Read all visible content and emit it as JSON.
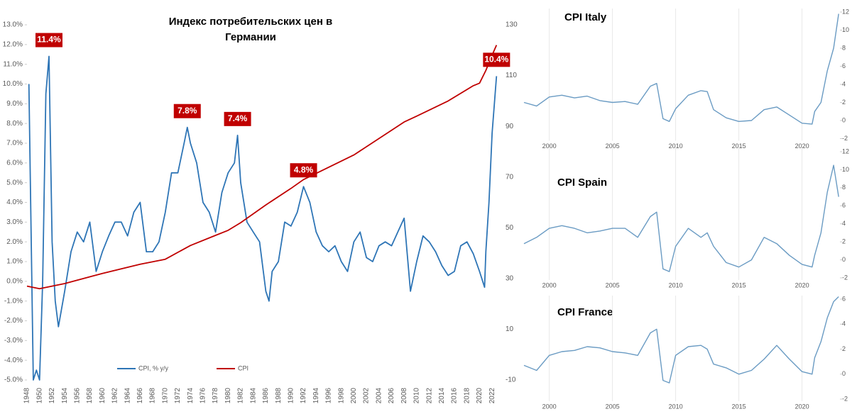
{
  "chart_data": [
    {
      "type": "line",
      "title": "Индекс потребительских цен в Германии",
      "y_axis_side": "left",
      "grid": false,
      "legend": "bottom",
      "annotation_color": "#c00000",
      "xlim": [
        1948,
        2023
      ],
      "xticks": [
        1948,
        1950,
        1952,
        1954,
        1956,
        1958,
        1960,
        1962,
        1964,
        1966,
        1968,
        1970,
        1972,
        1974,
        1976,
        1978,
        1980,
        1982,
        1984,
        1986,
        1988,
        1990,
        1992,
        1994,
        1996,
        1998,
        2000,
        2002,
        2004,
        2006,
        2008,
        2010,
        2012,
        2014,
        2016,
        2018,
        2020,
        2022
      ],
      "ylim": [
        -5,
        13
      ],
      "yticks": [
        {
          "value": -5,
          "label": "-5.0%"
        },
        {
          "value": -4,
          "label": "-4.0%"
        },
        {
          "value": -3,
          "label": "-3.0%"
        },
        {
          "value": -2,
          "label": "-2.0%"
        },
        {
          "value": -1,
          "label": "-1.0%"
        },
        {
          "value": 0,
          "label": "0.0%"
        },
        {
          "value": 1,
          "label": "1.0%"
        },
        {
          "value": 2,
          "label": "2.0%"
        },
        {
          "value": 3,
          "label": "3.0%"
        },
        {
          "value": 4,
          "label": "4.0%"
        },
        {
          "value": 5,
          "label": "5.0%"
        },
        {
          "value": 6,
          "label": "6.0%"
        },
        {
          "value": 7,
          "label": "7.0%"
        },
        {
          "value": 8,
          "label": "8.0%"
        },
        {
          "value": 9,
          "label": "9.0%"
        },
        {
          "value": 10,
          "label": "10.0%"
        },
        {
          "value": 11,
          "label": "11.0%"
        },
        {
          "value": 12,
          "label": "12.0%"
        },
        {
          "value": 13,
          "label": "13.0%"
        }
      ],
      "y2lim": [
        -10,
        130
      ],
      "y2ticks": [
        -10,
        10,
        30,
        50,
        70,
        90,
        110,
        130
      ],
      "series": [
        {
          "name": "CPI, % y/y",
          "color": "#2e75b6",
          "x": [
            1948.3,
            1949,
            1949.5,
            1950,
            1950.5,
            1951,
            1951.5,
            1952,
            1952.5,
            1953,
            1954,
            1955,
            1956,
            1957,
            1958,
            1959,
            1960,
            1961,
            1962,
            1963,
            1964,
            1965,
            1966,
            1967,
            1968,
            1969,
            1970,
            1971,
            1972,
            1973,
            1973.5,
            1974,
            1975,
            1976,
            1977,
            1978,
            1979,
            1980,
            1981,
            1981.5,
            1982,
            1983,
            1984,
            1985,
            1986,
            1986.5,
            1987,
            1988,
            1989,
            1990,
            1991,
            1992,
            1993,
            1994,
            1995,
            1996,
            1997,
            1998,
            1999,
            2000,
            2001,
            2002,
            2003,
            2004,
            2005,
            2006,
            2007,
            2008,
            2009,
            2010,
            2011,
            2012,
            2013,
            2014,
            2015,
            2016,
            2017,
            2018,
            2019,
            2020,
            2020.8,
            2021,
            2021.5,
            2022,
            2022.7
          ],
          "values": [
            10.0,
            -5.0,
            -4.5,
            -5.0,
            0.0,
            9.5,
            11.4,
            2.0,
            -1.0,
            -2.3,
            -0.5,
            1.5,
            2.5,
            2.0,
            3.0,
            0.5,
            1.5,
            2.3,
            3.0,
            3.0,
            2.3,
            3.5,
            4.0,
            1.5,
            1.5,
            2.0,
            3.5,
            5.5,
            5.5,
            7.0,
            7.8,
            7.0,
            6.0,
            4.0,
            3.5,
            2.5,
            4.5,
            5.5,
            6.0,
            7.4,
            5.0,
            3.0,
            2.5,
            2.0,
            -0.5,
            -1.0,
            0.5,
            1.0,
            3.0,
            2.8,
            3.5,
            4.8,
            4.0,
            2.5,
            1.8,
            1.5,
            1.8,
            1.0,
            0.5,
            2.0,
            2.5,
            1.2,
            1.0,
            1.8,
            2.0,
            1.8,
            2.5,
            3.2,
            -0.5,
            1.0,
            2.3,
            2.0,
            1.5,
            0.8,
            0.3,
            0.5,
            1.8,
            2.0,
            1.4,
            0.5,
            -0.3,
            1.5,
            4.0,
            7.5,
            10.4
          ]
        },
        {
          "name": "CPI",
          "color": "#c00000",
          "axis": "y2",
          "x": [
            1948,
            1950,
            1952,
            1954,
            1960,
            1966,
            1970,
            1974,
            1978,
            1980,
            1982,
            1986,
            1990,
            1992,
            2000,
            2008,
            2010,
            2015,
            2019,
            2020,
            2021,
            2022,
            2022.7
          ],
          "values": [
            27,
            26,
            27,
            28,
            32,
            35.6,
            37.6,
            43,
            47,
            49,
            52,
            59,
            65.5,
            69,
            78.7,
            91.7,
            94,
            100,
            106,
            107,
            112,
            118,
            122
          ]
        }
      ],
      "annotations": [
        {
          "x": 1951.5,
          "value": 11.4,
          "label": "11.4%"
        },
        {
          "x": 1973.5,
          "value": 7.8,
          "label": "7.8%"
        },
        {
          "x": 1981.5,
          "value": 7.4,
          "label": "7.4%"
        },
        {
          "x": 1992,
          "value": 4.8,
          "label": "4.8%"
        },
        {
          "x": 2022.7,
          "value": 10.4,
          "label": "10.4%"
        }
      ]
    },
    {
      "type": "line",
      "title": "CPI Italy",
      "y_axis_side": "right",
      "grid": "x",
      "xlim": [
        1998,
        2023
      ],
      "xticks": [
        2000,
        2005,
        2010,
        2015,
        2020
      ],
      "ylim": [
        -2,
        12
      ],
      "yticks": [
        -2,
        0,
        2,
        4,
        6,
        8,
        10,
        12
      ],
      "series": [
        {
          "name": "CPI Italy",
          "color": "#6a9bc3",
          "x": [
            1998,
            1999,
            2000,
            2001,
            2002,
            2003,
            2004,
            2005,
            2006,
            2007,
            2008,
            2008.5,
            2009,
            2009.5,
            2010,
            2011,
            2012,
            2012.5,
            2013,
            2014,
            2015,
            2016,
            2017,
            2018,
            2019,
            2020,
            2020.8,
            2021,
            2021.5,
            2022,
            2022.5,
            2022.9
          ],
          "values": [
            2.0,
            1.6,
            2.6,
            2.8,
            2.5,
            2.7,
            2.2,
            2.0,
            2.1,
            1.8,
            3.8,
            4.1,
            0.2,
            -0.1,
            1.3,
            2.8,
            3.3,
            3.2,
            1.2,
            0.3,
            -0.1,
            0.0,
            1.2,
            1.5,
            0.6,
            -0.3,
            -0.4,
            1.0,
            2.0,
            5.5,
            8.0,
            11.8
          ]
        }
      ]
    },
    {
      "type": "line",
      "title": "CPI Spain",
      "y_axis_side": "right",
      "grid": "x",
      "xlim": [
        1998,
        2023
      ],
      "xticks": [
        2000,
        2005,
        2010,
        2015,
        2020
      ],
      "ylim": [
        -2,
        12
      ],
      "yticks": [
        -2,
        0,
        2,
        4,
        6,
        8,
        10,
        12
      ],
      "series": [
        {
          "name": "CPI Spain",
          "color": "#6a9bc3",
          "x": [
            1998,
            1999,
            2000,
            2001,
            2002,
            2003,
            2004,
            2005,
            2006,
            2007,
            2008,
            2008.5,
            2009,
            2009.5,
            2010,
            2011,
            2012,
            2012.5,
            2013,
            2014,
            2015,
            2016,
            2017,
            2018,
            2019,
            2020,
            2020.8,
            2021,
            2021.5,
            2022,
            2022.5,
            2022.9
          ],
          "values": [
            1.8,
            2.5,
            3.5,
            3.8,
            3.5,
            3.0,
            3.2,
            3.5,
            3.5,
            2.5,
            4.8,
            5.3,
            -1.0,
            -1.3,
            1.5,
            3.5,
            2.5,
            3.0,
            1.5,
            -0.3,
            -0.8,
            0.0,
            2.5,
            1.8,
            0.5,
            -0.5,
            -0.8,
            0.5,
            3.0,
            7.5,
            10.5,
            7.0
          ]
        }
      ]
    },
    {
      "type": "line",
      "title": "CPI France",
      "y_axis_side": "right",
      "grid": "x",
      "xlim": [
        1998,
        2023
      ],
      "xticks": [
        2000,
        2005,
        2010,
        2015,
        2020
      ],
      "ylim": [
        -2,
        6
      ],
      "yticks": [
        -2,
        0,
        2,
        4,
        6
      ],
      "series": [
        {
          "name": "CPI France",
          "color": "#6a9bc3",
          "x": [
            1998,
            1999,
            2000,
            2001,
            2002,
            2003,
            2004,
            2005,
            2006,
            2007,
            2008,
            2008.5,
            2009,
            2009.5,
            2010,
            2011,
            2012,
            2012.5,
            2013,
            2014,
            2015,
            2016,
            2017,
            2018,
            2019,
            2020,
            2020.8,
            2021,
            2021.5,
            2022,
            2022.5,
            2022.9
          ],
          "values": [
            0.7,
            0.3,
            1.5,
            1.8,
            1.9,
            2.2,
            2.1,
            1.8,
            1.7,
            1.5,
            3.3,
            3.6,
            -0.5,
            -0.7,
            1.5,
            2.2,
            2.3,
            2.0,
            0.8,
            0.5,
            0.0,
            0.3,
            1.2,
            2.3,
            1.2,
            0.2,
            0.0,
            1.3,
            2.6,
            4.5,
            5.8,
            6.2
          ]
        }
      ]
    }
  ]
}
